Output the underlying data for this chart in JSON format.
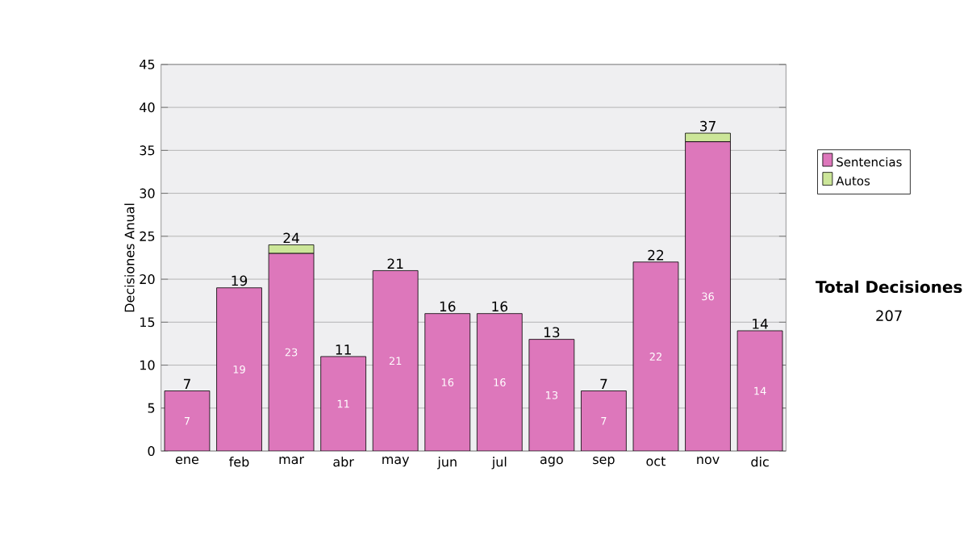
{
  "chart_data": {
    "type": "bar",
    "stacked": true,
    "ylabel": "Decisiones Anual",
    "categories": [
      "ene",
      "feb",
      "mar",
      "abr",
      "may",
      "jun",
      "jul",
      "ago",
      "sep",
      "oct",
      "nov",
      "dic"
    ],
    "series": [
      {
        "name": "Sentencias",
        "color": "#dd77bb",
        "values": [
          7,
          19,
          23,
          11,
          21,
          16,
          16,
          13,
          7,
          22,
          36,
          14
        ],
        "value_labels": [
          "7",
          "19",
          "23",
          "11",
          "21",
          "16",
          "16",
          "13",
          "7",
          "22",
          "36",
          "14"
        ]
      },
      {
        "name": "Autos",
        "color": "#cce699",
        "values": [
          0,
          0,
          1,
          0,
          0,
          0,
          0,
          0,
          0,
          0,
          1,
          0
        ]
      }
    ],
    "totals": [
      "7",
      "19",
      "24",
      "11",
      "21",
      "16",
      "16",
      "13",
      "7",
      "22",
      "37",
      "14"
    ],
    "ylim": [
      0,
      45
    ],
    "yticks": [
      0,
      5,
      10,
      15,
      20,
      25,
      30,
      35,
      40,
      45
    ],
    "grid": "y",
    "legend": "right",
    "annotations": [
      "Total Decisiones",
      "207"
    ]
  }
}
